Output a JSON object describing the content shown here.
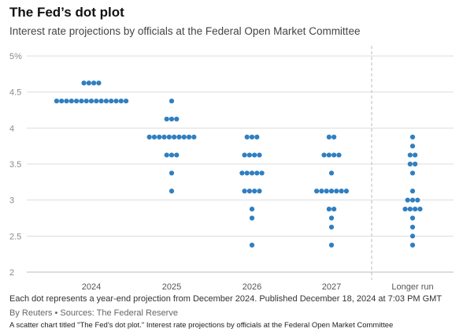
{
  "title": "The Fed’s dot plot",
  "subtitle": "Interest rate projections by officials at the Federal Open Market Committee",
  "note": "Each dot represents a year-end projection from December 2024. Published December 18, 2024 at 7:03 PM GMT",
  "credit": "By Reuters • Sources: The Federal Reserve",
  "alt_text": "A scatter chart titled \"The Fed's dot plot.\" Interest rate projections by officials at the Federal Open Market Committee",
  "colors": {
    "dot": "#2f7fc1",
    "grid": "#dddddd",
    "axis_text": "#8a8a8a",
    "x_text": "#555555"
  },
  "chart_data": {
    "type": "scatter",
    "subtype": "dot-plot",
    "categories": [
      "2024",
      "2025",
      "2026",
      "2027",
      "Longer run"
    ],
    "y_ticks": [
      {
        "value": 5,
        "label": "5%"
      },
      {
        "value": 4.5,
        "label": "4.5"
      },
      {
        "value": 4,
        "label": "4"
      },
      {
        "value": 3.5,
        "label": "3.5"
      },
      {
        "value": 3,
        "label": "3"
      },
      {
        "value": 2.5,
        "label": "2.5"
      },
      {
        "value": 2,
        "label": "2"
      }
    ],
    "ylim": [
      2,
      5
    ],
    "grid": true,
    "dashed_separator_before": "Longer run",
    "projections": [
      {
        "category": "2024",
        "rows": [
          {
            "y": 4.625,
            "count": 4
          },
          {
            "y": 4.375,
            "count": 15
          }
        ]
      },
      {
        "category": "2025",
        "rows": [
          {
            "y": 4.375,
            "count": 1
          },
          {
            "y": 4.125,
            "count": 3
          },
          {
            "y": 3.875,
            "count": 10
          },
          {
            "y": 3.625,
            "count": 3
          },
          {
            "y": 3.375,
            "count": 1
          },
          {
            "y": 3.125,
            "count": 1
          }
        ]
      },
      {
        "category": "2026",
        "rows": [
          {
            "y": 3.875,
            "count": 3
          },
          {
            "y": 3.625,
            "count": 4
          },
          {
            "y": 3.375,
            "count": 5
          },
          {
            "y": 3.125,
            "count": 4
          },
          {
            "y": 2.875,
            "count": 1
          },
          {
            "y": 2.75,
            "count": 1
          },
          {
            "y": 2.375,
            "count": 1
          }
        ]
      },
      {
        "category": "2027",
        "rows": [
          {
            "y": 3.875,
            "count": 2
          },
          {
            "y": 3.625,
            "count": 4
          },
          {
            "y": 3.375,
            "count": 1
          },
          {
            "y": 3.125,
            "count": 7
          },
          {
            "y": 2.875,
            "count": 2
          },
          {
            "y": 2.75,
            "count": 1
          },
          {
            "y": 2.625,
            "count": 1
          },
          {
            "y": 2.375,
            "count": 1
          }
        ]
      },
      {
        "category": "Longer run",
        "rows": [
          {
            "y": 3.875,
            "count": 1
          },
          {
            "y": 3.75,
            "count": 1
          },
          {
            "y": 3.625,
            "count": 2
          },
          {
            "y": 3.5,
            "count": 2
          },
          {
            "y": 3.375,
            "count": 1
          },
          {
            "y": 3.125,
            "count": 1
          },
          {
            "y": 3.0,
            "count": 3
          },
          {
            "y": 2.875,
            "count": 4
          },
          {
            "y": 2.75,
            "count": 1
          },
          {
            "y": 2.625,
            "count": 1
          },
          {
            "y": 2.5,
            "count": 1
          },
          {
            "y": 2.375,
            "count": 1
          }
        ]
      }
    ]
  }
}
